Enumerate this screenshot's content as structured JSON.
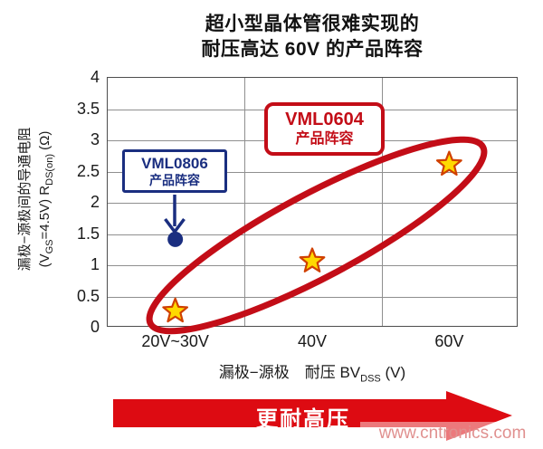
{
  "page": {
    "title_line1": "超小型晶体管很难实现的",
    "title_line2": "耐压高达 60V 的产品阵容",
    "watermark": "www.cntronics.com"
  },
  "colors": {
    "red": "#c30d17",
    "arrow_red": "#dd0b12",
    "navy": "#1a2e80",
    "star_fill": "#ffd900",
    "star_stroke": "#d04000",
    "grid": "#8f8f8f",
    "watermark_pink": "#e0908f"
  },
  "axes": {
    "y_title_line1": "漏极−源极间的导通电阻",
    "y_title_parts": {
      "p1": "(V",
      "sub1": "GS",
      "p2": "=4.5V)  R",
      "sub2": "DS(on)",
      "p3": " (Ω)"
    },
    "x_title_parts": {
      "p1": "漏极−源极　耐压 BV",
      "sub": "DSS",
      "p2": " (V)"
    }
  },
  "callouts": {
    "vml0604": {
      "name": "VML0604",
      "caption": "产品阵容"
    },
    "vml0806": {
      "name": "VML0806",
      "caption": "产品阵容"
    }
  },
  "bottom_arrow": {
    "label": "更耐高压"
  },
  "chart_data": {
    "type": "scatter",
    "title": "超小型晶体管很难实现的 耐压高达 60V 的产品阵容",
    "xlabel": "漏极−源极 耐压 BVDSS (V)",
    "ylabel": "漏极−源极间的导通电阻 (VGS=4.5V) RDS(on) (Ω)",
    "categories": [
      "20V~30V",
      "40V",
      "60V"
    ],
    "ylim": [
      0,
      4
    ],
    "y_ticks": [
      {
        "value": 0,
        "label": "0"
      },
      {
        "value": 0.5,
        "label": "0.5"
      },
      {
        "value": 1,
        "label": "1"
      },
      {
        "value": 1.5,
        "label": "1.5"
      },
      {
        "value": 2,
        "label": "2"
      },
      {
        "value": 2.5,
        "label": "2.5"
      },
      {
        "value": 3,
        "label": "3"
      },
      {
        "value": 3.5,
        "label": "3.5"
      },
      {
        "value": 4,
        "label": "4"
      }
    ],
    "grid": true,
    "legend_position": "none",
    "series": [
      {
        "name": "VML0604 产品阵容",
        "marker": "star",
        "fill": "#ffd900",
        "stroke": "#d04000",
        "points": [
          {
            "x": "20V~30V",
            "y": 0.25
          },
          {
            "x": "40V",
            "y": 1.05
          },
          {
            "x": "60V",
            "y": 2.6
          }
        ]
      },
      {
        "name": "VML0806 产品阵容",
        "marker": "dot",
        "color": "#1a2e80",
        "points": [
          {
            "x": "20V~30V",
            "y": 1.4
          }
        ]
      }
    ],
    "annotations": [
      {
        "text": "VML0604 产品阵容",
        "style": "red-rounded-box",
        "points_to": "star series (circled by red ellipse)"
      },
      {
        "text": "VML0806 产品阵容",
        "style": "navy-box",
        "points_to": "blue dot at 20V~30V / 1.4Ω"
      },
      {
        "text": "更耐高压",
        "style": "red-arrow-right"
      }
    ]
  }
}
